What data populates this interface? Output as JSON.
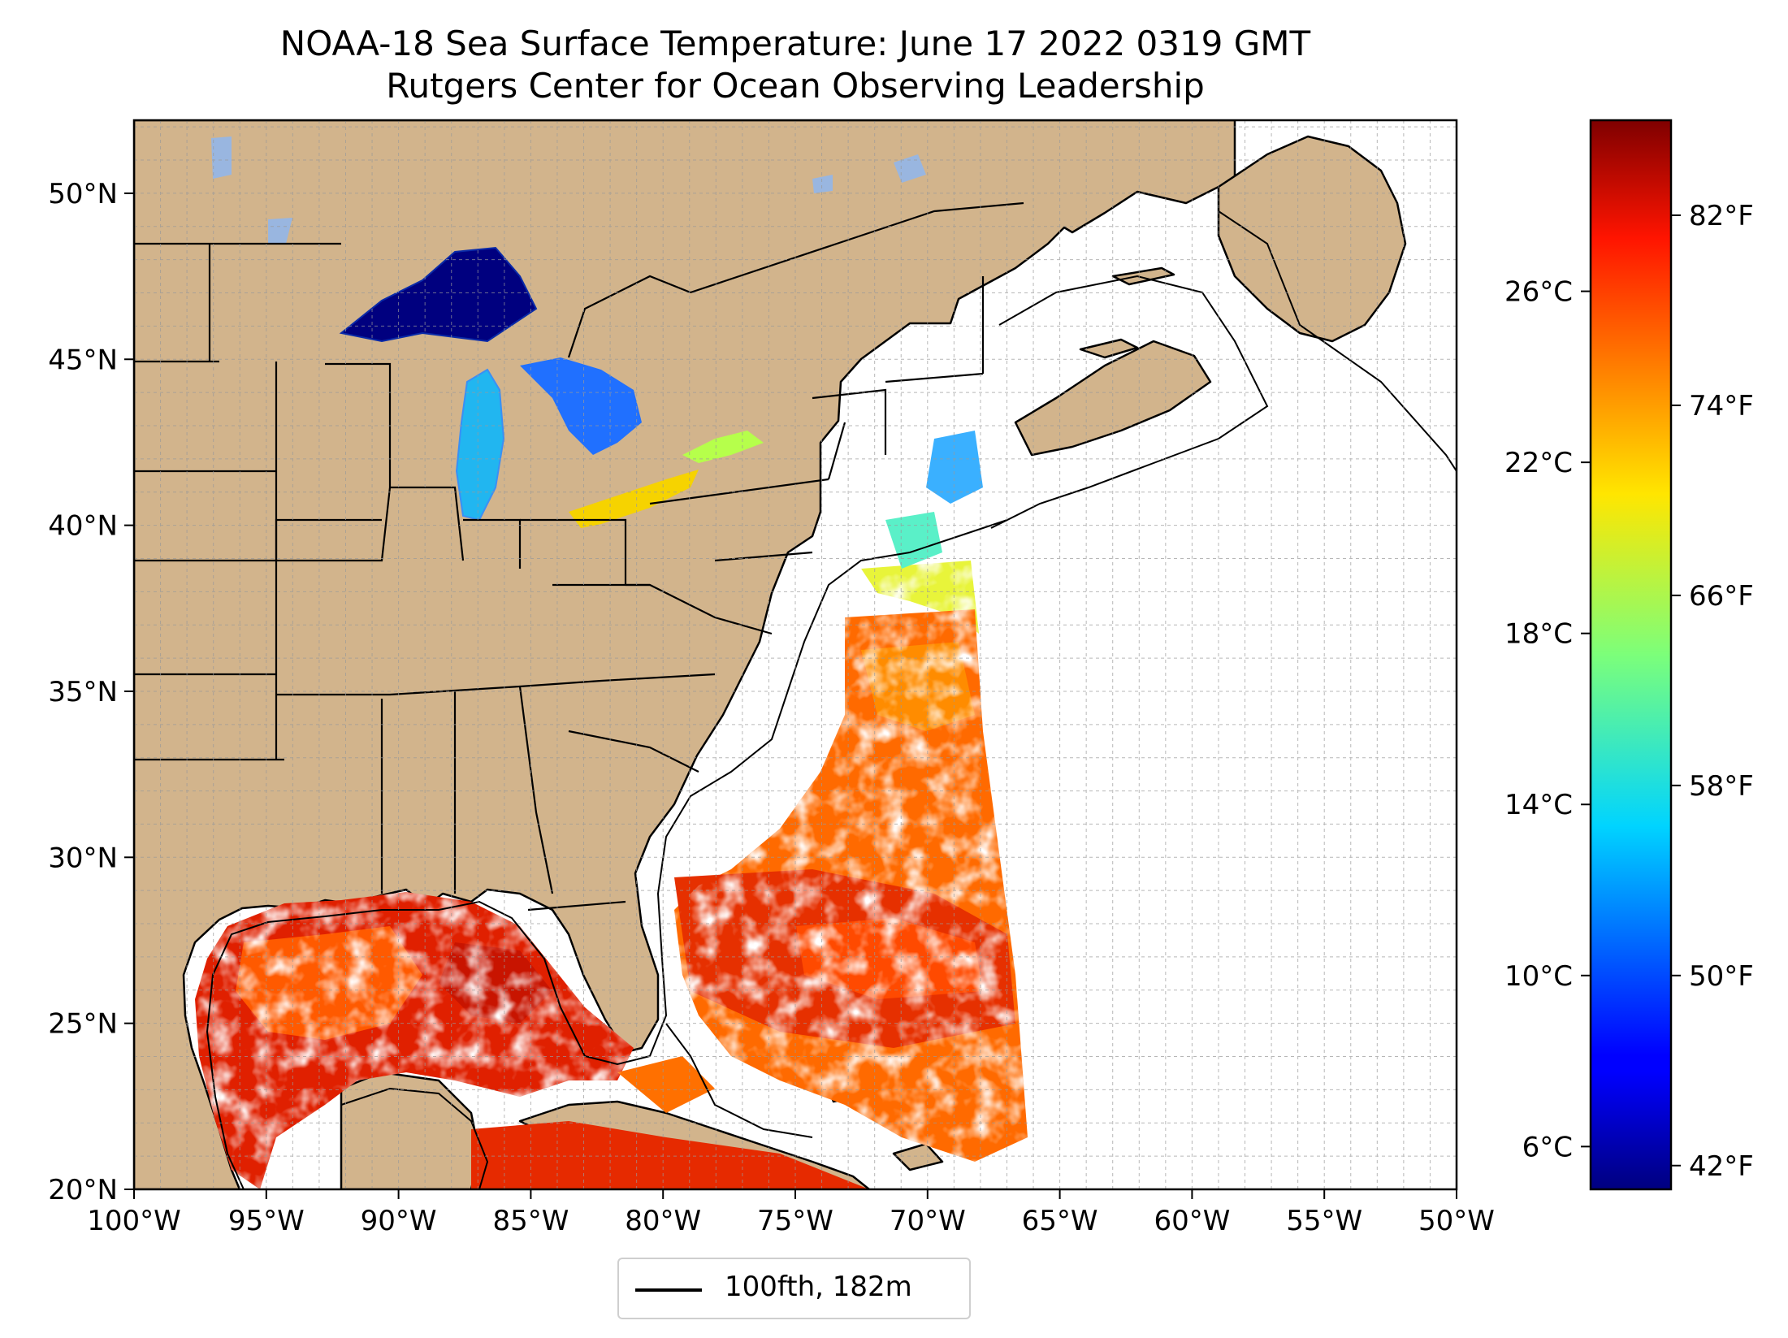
{
  "title": "NOAA-18 Sea Surface Temperature: June 17 2022 0319 GMT",
  "subtitle": "Rutgers Center for Ocean Observing Leadership",
  "map": {
    "lon_range": [
      -100,
      -50
    ],
    "lat_range": [
      20,
      52.2
    ],
    "gridlines": true,
    "land_color": "#d2b48c",
    "water_no_data_color": "#ffffff",
    "lake_no_data_color": "#99b6e0",
    "x_ticks": [
      "100°W",
      "95°W",
      "90°W",
      "85°W",
      "80°W",
      "75°W",
      "70°W",
      "65°W",
      "60°W",
      "55°W",
      "50°W"
    ],
    "y_ticks": [
      "20°N",
      "25°N",
      "30°N",
      "35°N",
      "40°N",
      "45°N",
      "50°N"
    ]
  },
  "colorbar": {
    "colormap": "jet",
    "range_c": [
      5,
      30
    ],
    "celsius_ticks": [
      "6°C",
      "10°C",
      "14°C",
      "18°C",
      "22°C",
      "26°C"
    ],
    "fahrenheit_ticks": [
      "42°F",
      "50°F",
      "58°F",
      "66°F",
      "74°F",
      "82°F"
    ]
  },
  "legend": {
    "label": "100fth, 182m",
    "placement": "bottom-center"
  }
}
